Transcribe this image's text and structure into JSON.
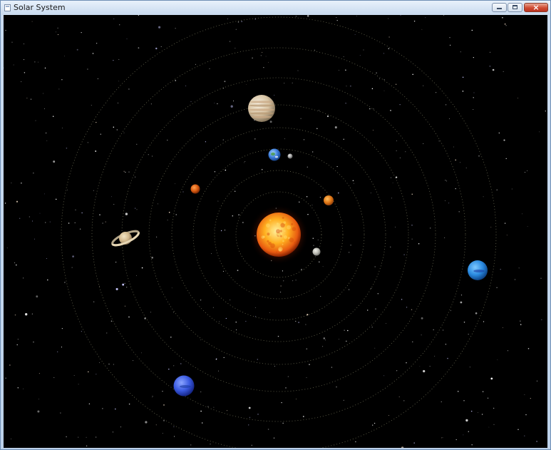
{
  "window": {
    "title": "Solar System",
    "app_icon": "window-app-icon",
    "controls": {
      "minimize_icon": "minimize-icon",
      "maximize_icon": "maximize-icon",
      "close_icon": "close-icon",
      "close_glyph": "×"
    }
  },
  "scene": {
    "background_color": "#000000",
    "orbit_color": "#8a8a6a",
    "sun": {
      "name": "sun",
      "colors": [
        "#fff2a0",
        "#ffb020",
        "#e85a10",
        "#7a1a00"
      ]
    },
    "planets": [
      {
        "name": "mercury",
        "colors": [
          "#f0f0ea",
          "#b8b8b0",
          "#6a6a66"
        ]
      },
      {
        "name": "venus",
        "colors": [
          "#ffc060",
          "#e07818",
          "#8a3a08"
        ]
      },
      {
        "name": "earth",
        "colors": [
          "#a8d4ff",
          "#3a7ad8",
          "#123a7a"
        ]
      },
      {
        "name": "moon",
        "colors": [
          "#e8e8e8",
          "#a0a0a0",
          "#4a4a4a"
        ]
      },
      {
        "name": "mars",
        "colors": [
          "#ffa050",
          "#d85a10",
          "#6a2004"
        ]
      },
      {
        "name": "jupiter",
        "colors": [
          "#f6efe0",
          "#d8c4a4",
          "#7a6a52"
        ]
      },
      {
        "name": "saturn",
        "colors": [
          "#f4e6c4",
          "#d2b88c",
          "#7a6448"
        ]
      },
      {
        "name": "uranus",
        "colors": [
          "#7ec8ff",
          "#2a8ae0",
          "#0a3a7a"
        ]
      },
      {
        "name": "neptune",
        "colors": [
          "#8aa4ff",
          "#3a5ae0",
          "#101e7a"
        ]
      }
    ]
  }
}
